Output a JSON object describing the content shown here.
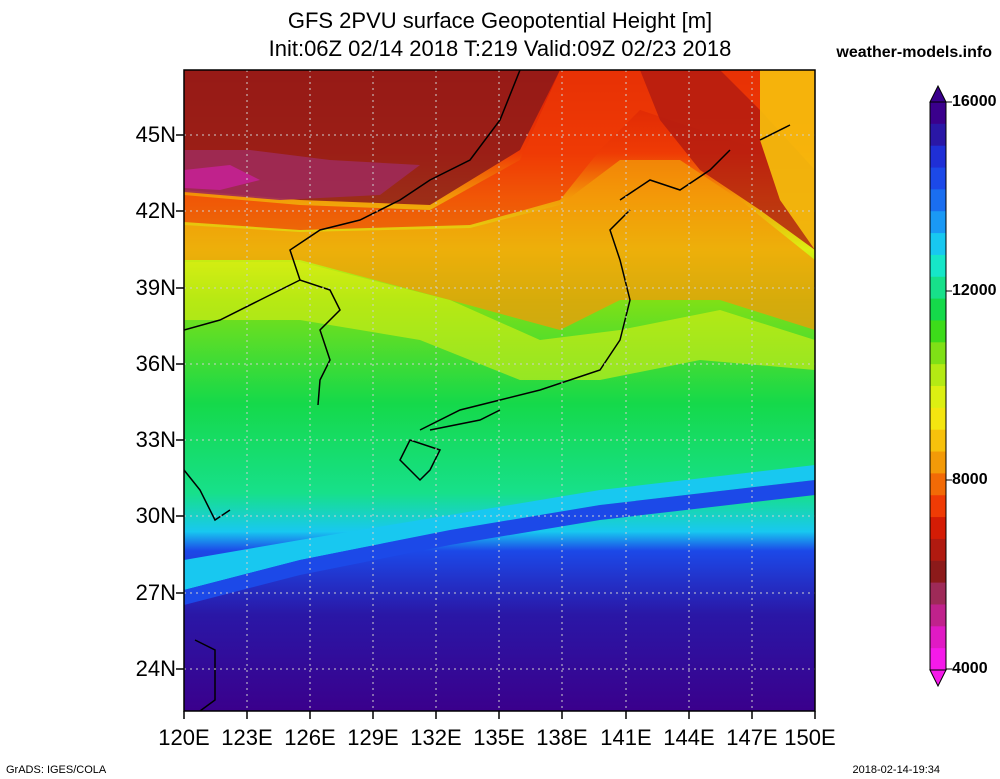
{
  "title": {
    "line1": "GFS 2PVU surface Geopotential Height [m]",
    "line2": "Init:06Z 02/14 2018 T:219 Valid:09Z 02/23 2018"
  },
  "site": "weather-models.info",
  "axes": {
    "lat_labels": [
      "45N",
      "42N",
      "39N",
      "36N",
      "33N",
      "30N",
      "27N",
      "24N"
    ],
    "lon_labels": [
      "120E",
      "123E",
      "126E",
      "129E",
      "132E",
      "135E",
      "138E",
      "141E",
      "144E",
      "147E",
      "150E"
    ]
  },
  "colorbar": {
    "labels": [
      "16000",
      "12000",
      "8000",
      "4000"
    ],
    "colors": [
      "#3a008c",
      "#2a17a6",
      "#1f2fd6",
      "#1c49e8",
      "#1a6ef0",
      "#1a99f5",
      "#18c8f0",
      "#16e6c8",
      "#17e08a",
      "#15d94a",
      "#3ddb1a",
      "#7fe016",
      "#b4ea14",
      "#dcef12",
      "#f4e510",
      "#f7c10c",
      "#f39a08",
      "#f26a06",
      "#ef3b05",
      "#d41c05",
      "#b01a10",
      "#8c1a1a",
      "#9e2a58",
      "#c0228c",
      "#e01ac4",
      "#f51aea"
    ]
  },
  "footer": {
    "left": "GrADS: IGES/COLA",
    "right": "2018-02-14-19:34"
  }
}
